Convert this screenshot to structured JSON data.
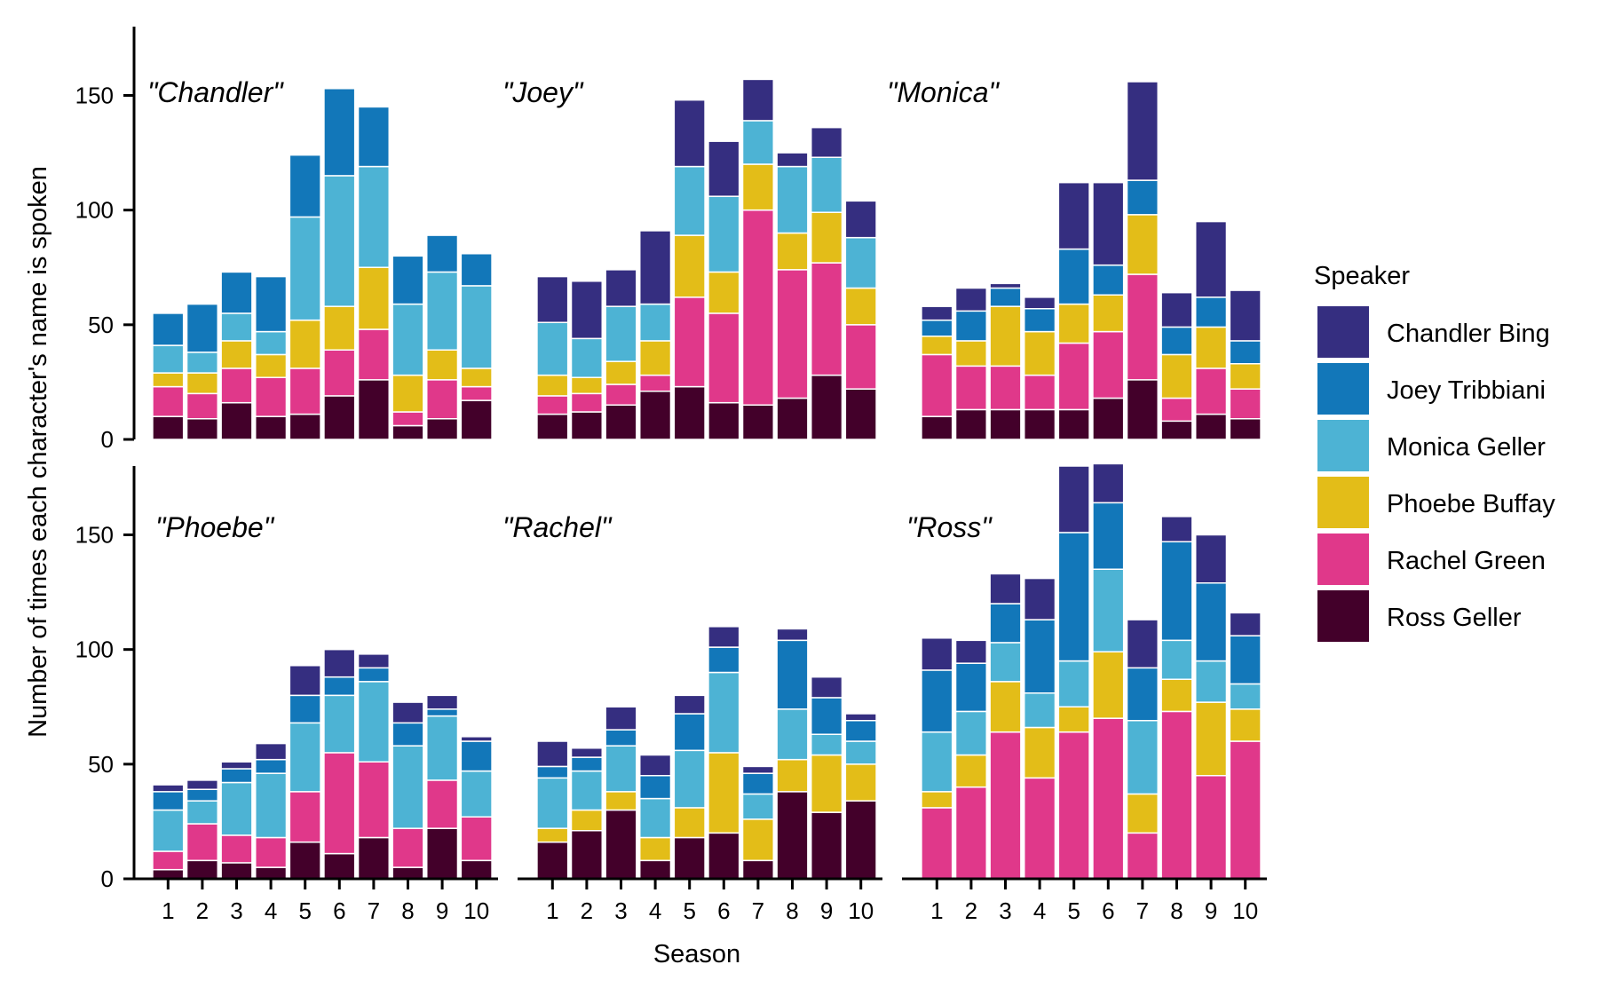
{
  "chart_data": {
    "type": "bar",
    "stacked": true,
    "xlabel": "Season",
    "ylabel": "Number of times each character's name is spoken",
    "ylim": [
      0,
      180
    ],
    "yticks": [
      0,
      50,
      100,
      150
    ],
    "categories": [
      "1",
      "2",
      "3",
      "4",
      "5",
      "6",
      "7",
      "8",
      "9",
      "10"
    ],
    "legend": {
      "title": "Speaker",
      "placement": "right",
      "entries": [
        "Chandler Bing",
        "Joey Tribbiani",
        "Monica Geller",
        "Phoebe Buffay",
        "Rachel Green",
        "Ross Geller"
      ]
    },
    "colors": {
      "Chandler Bing": "#352e80",
      "Joey Tribbiani": "#1277b9",
      "Monica Geller": "#4db3d4",
      "Phoebe Buffay": "#e3bd18",
      "Rachel Green": "#e0388a",
      "Ross Geller": "#43002a"
    },
    "stack_order": [
      "Ross Geller",
      "Rachel Green",
      "Phoebe Buffay",
      "Monica Geller",
      "Joey Tribbiani",
      "Chandler Bing"
    ],
    "panels": [
      {
        "title": "\"Chandler\"",
        "series": [
          {
            "name": "Ross Geller",
            "values": [
              10,
              9,
              16,
              10,
              11,
              19,
              26,
              6,
              9,
              17
            ]
          },
          {
            "name": "Rachel Green",
            "values": [
              13,
              11,
              15,
              17,
              20,
              20,
              22,
              6,
              17,
              6
            ]
          },
          {
            "name": "Phoebe Buffay",
            "values": [
              6,
              9,
              12,
              10,
              21,
              19,
              27,
              16,
              13,
              8
            ]
          },
          {
            "name": "Monica Geller",
            "values": [
              12,
              9,
              12,
              10,
              45,
              57,
              44,
              31,
              34,
              36
            ]
          },
          {
            "name": "Joey Tribbiani",
            "values": [
              14,
              21,
              18,
              24,
              27,
              38,
              26,
              21,
              16,
              14
            ]
          },
          {
            "name": "Chandler Bing",
            "values": [
              0,
              0,
              0,
              0,
              0,
              0,
              0,
              0,
              0,
              0
            ]
          }
        ]
      },
      {
        "title": "\"Joey\"",
        "series": [
          {
            "name": "Ross Geller",
            "values": [
              11,
              12,
              15,
              21,
              23,
              16,
              15,
              18,
              28,
              22
            ]
          },
          {
            "name": "Rachel Green",
            "values": [
              8,
              8,
              9,
              7,
              39,
              39,
              85,
              56,
              49,
              28
            ]
          },
          {
            "name": "Phoebe Buffay",
            "values": [
              9,
              7,
              10,
              15,
              27,
              18,
              20,
              16,
              22,
              16
            ]
          },
          {
            "name": "Monica Geller",
            "values": [
              23,
              17,
              24,
              16,
              30,
              33,
              19,
              29,
              24,
              22
            ]
          },
          {
            "name": "Joey Tribbiani",
            "values": [
              0,
              0,
              0,
              0,
              0,
              0,
              0,
              0,
              0,
              0
            ]
          },
          {
            "name": "Chandler Bing",
            "values": [
              20,
              25,
              16,
              32,
              29,
              24,
              18,
              6,
              13,
              16
            ]
          }
        ]
      },
      {
        "title": "\"Monica\"",
        "series": [
          {
            "name": "Ross Geller",
            "values": [
              10,
              13,
              13,
              13,
              13,
              18,
              26,
              8,
              11,
              9
            ]
          },
          {
            "name": "Rachel Green",
            "values": [
              27,
              19,
              19,
              15,
              29,
              29,
              46,
              10,
              20,
              13
            ]
          },
          {
            "name": "Phoebe Buffay",
            "values": [
              8,
              11,
              26,
              19,
              17,
              16,
              26,
              19,
              18,
              11
            ]
          },
          {
            "name": "Monica Geller",
            "values": [
              0,
              0,
              0,
              0,
              0,
              0,
              0,
              0,
              0,
              0
            ]
          },
          {
            "name": "Joey Tribbiani",
            "values": [
              7,
              13,
              8,
              10,
              24,
              13,
              15,
              12,
              13,
              10
            ]
          },
          {
            "name": "Chandler Bing",
            "values": [
              6,
              10,
              2,
              5,
              29,
              36,
              43,
              15,
              33,
              22
            ]
          }
        ]
      },
      {
        "title": "\"Phoebe\"",
        "series": [
          {
            "name": "Ross Geller",
            "values": [
              4,
              8,
              7,
              5,
              16,
              11,
              18,
              5,
              22,
              8
            ]
          },
          {
            "name": "Rachel Green",
            "values": [
              8,
              16,
              12,
              13,
              22,
              44,
              33,
              17,
              21,
              19
            ]
          },
          {
            "name": "Phoebe Buffay",
            "values": [
              0,
              0,
              0,
              0,
              0,
              0,
              0,
              0,
              0,
              0
            ]
          },
          {
            "name": "Monica Geller",
            "values": [
              18,
              10,
              23,
              28,
              30,
              25,
              35,
              36,
              28,
              20
            ]
          },
          {
            "name": "Joey Tribbiani",
            "values": [
              8,
              5,
              6,
              6,
              12,
              8,
              6,
              10,
              3,
              13
            ]
          },
          {
            "name": "Chandler Bing",
            "values": [
              3,
              4,
              3,
              7,
              13,
              12,
              6,
              9,
              6,
              2
            ]
          }
        ]
      },
      {
        "title": "\"Rachel\"",
        "series": [
          {
            "name": "Ross Geller",
            "values": [
              16,
              21,
              30,
              8,
              18,
              20,
              8,
              38,
              29,
              34
            ]
          },
          {
            "name": "Rachel Green",
            "values": [
              0,
              0,
              0,
              0,
              0,
              0,
              0,
              0,
              0,
              0
            ]
          },
          {
            "name": "Phoebe Buffay",
            "values": [
              6,
              9,
              8,
              10,
              13,
              35,
              18,
              14,
              25,
              16
            ]
          },
          {
            "name": "Monica Geller",
            "values": [
              22,
              17,
              20,
              17,
              25,
              35,
              11,
              22,
              9,
              10
            ]
          },
          {
            "name": "Joey Tribbiani",
            "values": [
              5,
              6,
              7,
              10,
              16,
              11,
              9,
              30,
              16,
              9
            ]
          },
          {
            "name": "Chandler Bing",
            "values": [
              11,
              4,
              10,
              9,
              8,
              9,
              3,
              5,
              9,
              3
            ]
          }
        ]
      },
      {
        "title": "\"Ross\"",
        "series": [
          {
            "name": "Ross Geller",
            "values": [
              0,
              0,
              0,
              0,
              0,
              0,
              0,
              0,
              0,
              0
            ]
          },
          {
            "name": "Rachel Green",
            "values": [
              31,
              40,
              64,
              44,
              64,
              70,
              20,
              73,
              45,
              60
            ]
          },
          {
            "name": "Phoebe Buffay",
            "values": [
              7,
              14,
              22,
              22,
              11,
              29,
              17,
              14,
              32,
              14
            ]
          },
          {
            "name": "Monica Geller",
            "values": [
              26,
              19,
              17,
              15,
              20,
              36,
              32,
              17,
              18,
              11
            ]
          },
          {
            "name": "Joey Tribbiani",
            "values": [
              27,
              21,
              17,
              32,
              56,
              29,
              23,
              43,
              34,
              21
            ]
          },
          {
            "name": "Chandler Bing",
            "values": [
              14,
              10,
              13,
              18,
              29,
              17,
              21,
              11,
              21,
              10
            ]
          }
        ]
      }
    ]
  }
}
